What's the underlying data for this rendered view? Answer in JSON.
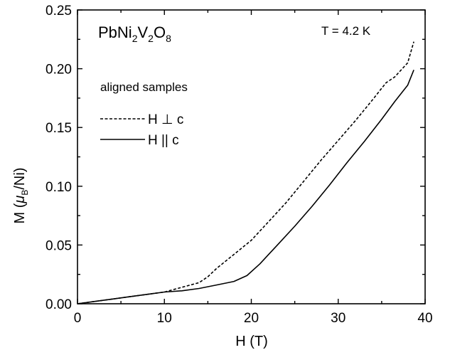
{
  "chart_data": {
    "type": "line",
    "xlabel": "H (T)",
    "ylabel": "M (μB/Ni)",
    "xlim": [
      0,
      40
    ],
    "ylim": [
      0,
      0.25
    ],
    "xticks": [
      "0",
      "10",
      "20",
      "30",
      "40"
    ],
    "yticks": [
      "0.00",
      "0.05",
      "0.10",
      "0.15",
      "0.20",
      "0.25"
    ],
    "grid": false,
    "legend_placement": "left",
    "annotations": {
      "compound": "PbNi2V2O8",
      "temperature": "T = 4.2 K",
      "legend_heading": "aligned samples"
    },
    "series": [
      {
        "name": "H ⊥ c",
        "style": "dashed",
        "x": [
          0.0,
          2.0,
          4.0,
          6.0,
          8.0,
          10.0,
          12.0,
          14.0,
          15.0,
          16.0,
          18.0,
          20.0,
          22.0,
          24.0,
          26.0,
          28.0,
          30.0,
          32.0,
          34.0,
          35.5,
          36.5,
          38.0,
          38.7
        ],
        "y": [
          0.0,
          0.002,
          0.004,
          0.006,
          0.008,
          0.01,
          0.014,
          0.018,
          0.023,
          0.03,
          0.042,
          0.054,
          0.07,
          0.086,
          0.104,
          0.122,
          0.139,
          0.156,
          0.174,
          0.188,
          0.193,
          0.205,
          0.223
        ]
      },
      {
        "name": "H || c",
        "style": "solid",
        "x": [
          0.0,
          2.0,
          4.0,
          6.0,
          8.0,
          10.0,
          12.0,
          14.0,
          16.0,
          18.0,
          19.5,
          21.0,
          23.0,
          25.0,
          27.0,
          29.0,
          31.0,
          33.0,
          35.0,
          36.5,
          38.0,
          38.7
        ],
        "y": [
          0.0,
          0.002,
          0.004,
          0.006,
          0.008,
          0.01,
          0.011,
          0.013,
          0.016,
          0.019,
          0.024,
          0.034,
          0.05,
          0.066,
          0.083,
          0.101,
          0.12,
          0.138,
          0.157,
          0.172,
          0.186,
          0.199
        ]
      }
    ]
  }
}
